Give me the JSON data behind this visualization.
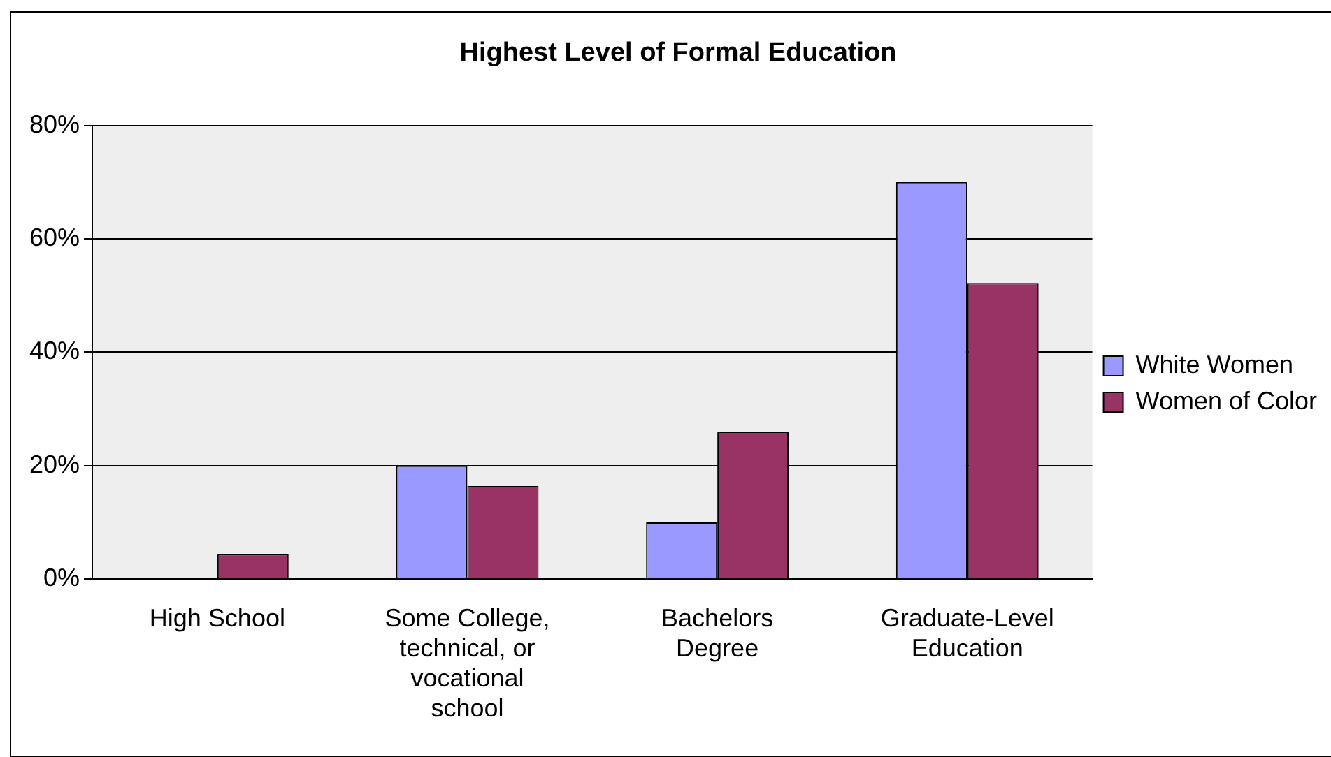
{
  "chart_data": {
    "type": "bar",
    "title": "Highest Level of Formal Education",
    "categories": [
      "High School",
      "Some College, technical, or vocational school",
      "Bachelors Degree",
      "Graduate-Level Education"
    ],
    "series": [
      {
        "name": "White Women",
        "color": "#9999ff",
        "values": [
          0,
          20,
          10,
          70
        ]
      },
      {
        "name": "Women of Color",
        "color": "#993366",
        "values": [
          4.4,
          16.4,
          26,
          52.2
        ]
      }
    ],
    "ylim": [
      0,
      80
    ],
    "yticks": [
      {
        "value": 0,
        "label": "0%"
      },
      {
        "value": 20,
        "label": "20%"
      },
      {
        "value": 40,
        "label": "40%"
      },
      {
        "value": 60,
        "label": "60%"
      },
      {
        "value": 80,
        "label": "80%"
      }
    ],
    "grid": "y",
    "legend": "right"
  }
}
